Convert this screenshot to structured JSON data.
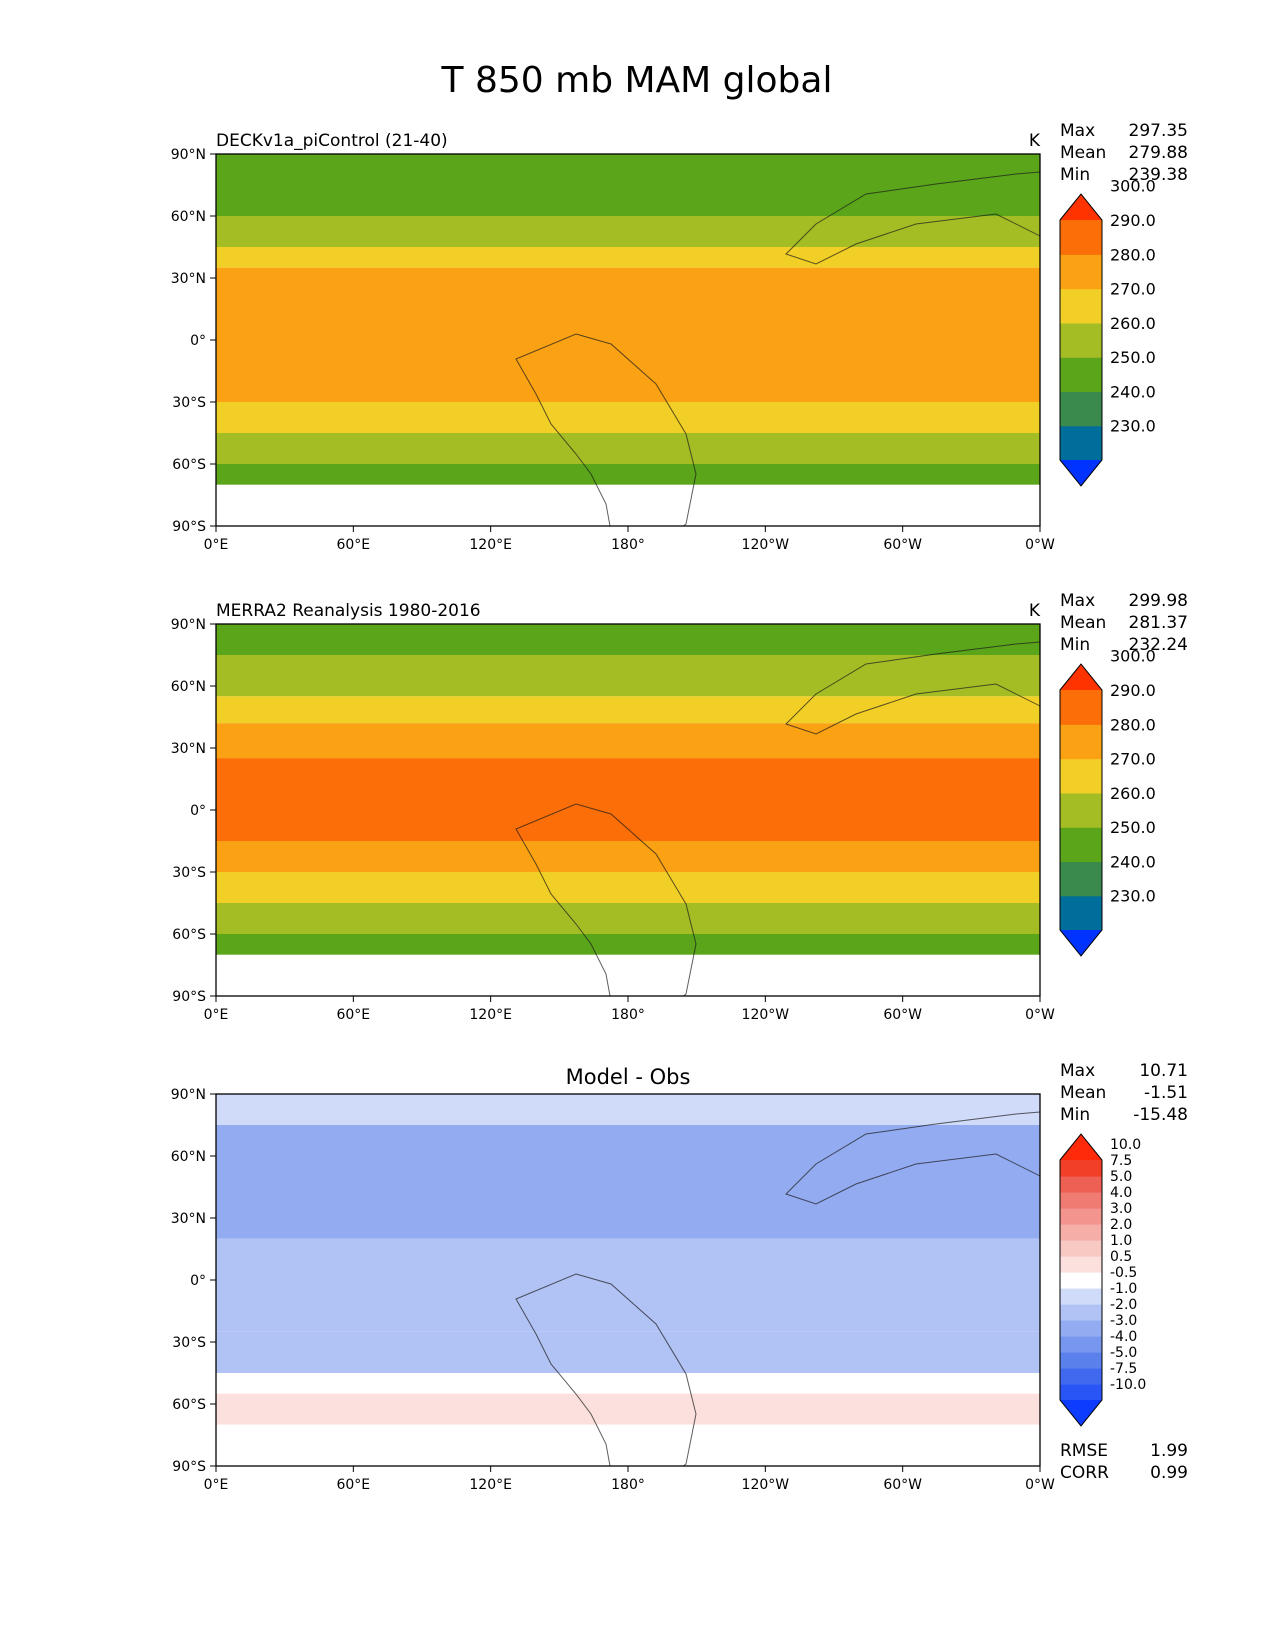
{
  "figure": {
    "title": "T 850 mb MAM global"
  },
  "chart_data": [
    {
      "type": "heatmap",
      "title": "DECKv1a_piControl (21-40)",
      "units": "K",
      "stats": [
        {
          "label": "Max",
          "value": "297.35"
        },
        {
          "label": "Mean",
          "value": "279.88"
        },
        {
          "label": "Min",
          "value": "239.38"
        }
      ],
      "xticks": [
        "0°E",
        "60°E",
        "120°E",
        "180°",
        "120°W",
        "60°W",
        "0°W"
      ],
      "yticks": [
        "90°N",
        "60°N",
        "30°N",
        "0°",
        "30°S",
        "60°S",
        "90°S"
      ],
      "colorbar": {
        "levels": [
          220,
          230,
          240,
          250,
          260,
          270,
          280,
          290,
          300,
          310
        ],
        "tick_labels": [
          "300.0",
          "290.0",
          "280.0",
          "270.0",
          "260.0",
          "250.0",
          "240.0",
          "230.0"
        ],
        "colors": [
          "#0033ff",
          "#006e9a",
          "#3a8a4e",
          "#5aa51a",
          "#a5bd24",
          "#f2cf26",
          "#fba214",
          "#fc6f08",
          "#ff3300"
        ],
        "extend": "both"
      },
      "bands_by_latitude": [
        {
          "lat_range": [
            75,
            90
          ],
          "value_range": [
            250,
            260
          ]
        },
        {
          "lat_range": [
            60,
            75
          ],
          "value_range": [
            250,
            260
          ]
        },
        {
          "lat_range": [
            45,
            60
          ],
          "value_range": [
            260,
            270
          ]
        },
        {
          "lat_range": [
            35,
            45
          ],
          "value_range": [
            270,
            280
          ]
        },
        {
          "lat_range": [
            -30,
            35
          ],
          "value_range": [
            280,
            290
          ]
        },
        {
          "lat_range": [
            -45,
            -30
          ],
          "value_range": [
            270,
            280
          ]
        },
        {
          "lat_range": [
            -60,
            -45
          ],
          "value_range": [
            260,
            270
          ]
        },
        {
          "lat_range": [
            -70,
            -60
          ],
          "value_range": [
            250,
            260
          ]
        }
      ]
    },
    {
      "type": "heatmap",
      "title": "MERRA2 Reanalysis 1980-2016",
      "units": "K",
      "stats": [
        {
          "label": "Max",
          "value": "299.98"
        },
        {
          "label": "Mean",
          "value": "281.37"
        },
        {
          "label": "Min",
          "value": "232.24"
        }
      ],
      "xticks": [
        "0°E",
        "60°E",
        "120°E",
        "180°",
        "120°W",
        "60°W",
        "0°W"
      ],
      "yticks": [
        "90°N",
        "60°N",
        "30°N",
        "0°",
        "30°S",
        "60°S",
        "90°S"
      ],
      "colorbar": {
        "levels": [
          220,
          230,
          240,
          250,
          260,
          270,
          280,
          290,
          300,
          310
        ],
        "tick_labels": [
          "300.0",
          "290.0",
          "280.0",
          "270.0",
          "260.0",
          "250.0",
          "240.0",
          "230.0"
        ],
        "colors": [
          "#0033ff",
          "#006e9a",
          "#3a8a4e",
          "#5aa51a",
          "#a5bd24",
          "#f2cf26",
          "#fba214",
          "#fc6f08",
          "#ff3300"
        ],
        "extend": "both"
      },
      "bands_by_latitude": [
        {
          "lat_range": [
            75,
            90
          ],
          "value_range": [
            250,
            260
          ]
        },
        {
          "lat_range": [
            55,
            75
          ],
          "value_range": [
            260,
            270
          ]
        },
        {
          "lat_range": [
            42,
            55
          ],
          "value_range": [
            270,
            280
          ]
        },
        {
          "lat_range": [
            -30,
            42
          ],
          "value_range": [
            280,
            290
          ]
        },
        {
          "lat_range": [
            -15,
            25
          ],
          "value_range": [
            290,
            300
          ]
        },
        {
          "lat_range": [
            -45,
            -30
          ],
          "value_range": [
            270,
            280
          ]
        },
        {
          "lat_range": [
            -60,
            -45
          ],
          "value_range": [
            260,
            270
          ]
        },
        {
          "lat_range": [
            -70,
            -60
          ],
          "value_range": [
            250,
            260
          ]
        }
      ]
    },
    {
      "type": "heatmap",
      "title": "Model - Obs",
      "stats": [
        {
          "label": "Max",
          "value": "10.71"
        },
        {
          "label": "Mean",
          "value": "-1.51"
        },
        {
          "label": "Min",
          "value": "-15.48"
        }
      ],
      "metrics": [
        {
          "label": "RMSE",
          "value": "1.99"
        },
        {
          "label": "CORR",
          "value": "0.99"
        }
      ],
      "xticks": [
        "0°E",
        "60°E",
        "120°E",
        "180°",
        "120°W",
        "60°W",
        "0°W"
      ],
      "yticks": [
        "90°N",
        "60°N",
        "30°N",
        "0°",
        "30°S",
        "60°S",
        "90°S"
      ],
      "colorbar": {
        "levels": [
          -12.5,
          -10.0,
          -7.5,
          -5.0,
          -4.0,
          -3.0,
          -2.0,
          -1.0,
          -0.5,
          0.5,
          1.0,
          2.0,
          3.0,
          4.0,
          5.0,
          7.5,
          10.0,
          12.5
        ],
        "tick_labels": [
          "10.0",
          "7.5",
          "5.0",
          "4.0",
          "3.0",
          "2.0",
          "1.0",
          "0.5",
          "-0.5",
          "-1.0",
          "-2.0",
          "-3.0",
          "-4.0",
          "-5.0",
          "-7.5",
          "-10.0"
        ],
        "colors": [
          "#0d3cff",
          "#2a55f6",
          "#3f69ee",
          "#5a80ec",
          "#7796ee",
          "#93abf1",
          "#b1c3f5",
          "#d0dbf9",
          "#ffffff",
          "#fbe0dd",
          "#f8c8c3",
          "#f5aea8",
          "#f3958e",
          "#f07b72",
          "#ee6053",
          "#f23f28",
          "#ff2a0a"
        ],
        "extend": "both"
      },
      "bands_by_latitude": [
        {
          "lat_range": [
            75,
            90
          ],
          "value_range": [
            -1.0,
            -0.5
          ]
        },
        {
          "lat_range": [
            45,
            75
          ],
          "value_range": [
            -3.0,
            -2.0
          ]
        },
        {
          "lat_range": [
            20,
            45
          ],
          "value_range": [
            -3.0,
            -2.0
          ]
        },
        {
          "lat_range": [
            -25,
            20
          ],
          "value_range": [
            -2.0,
            -1.0
          ]
        },
        {
          "lat_range": [
            -45,
            -25
          ],
          "value_range": [
            -2.0,
            -1.0
          ]
        },
        {
          "lat_range": [
            -55,
            -45
          ],
          "value_range": [
            -0.5,
            0.5
          ]
        },
        {
          "lat_range": [
            -70,
            -55
          ],
          "value_range": [
            0.5,
            1.0
          ]
        },
        {
          "lat_range": [
            -90,
            -70
          ],
          "value_range": [
            -0.5,
            0.5
          ]
        }
      ]
    }
  ]
}
